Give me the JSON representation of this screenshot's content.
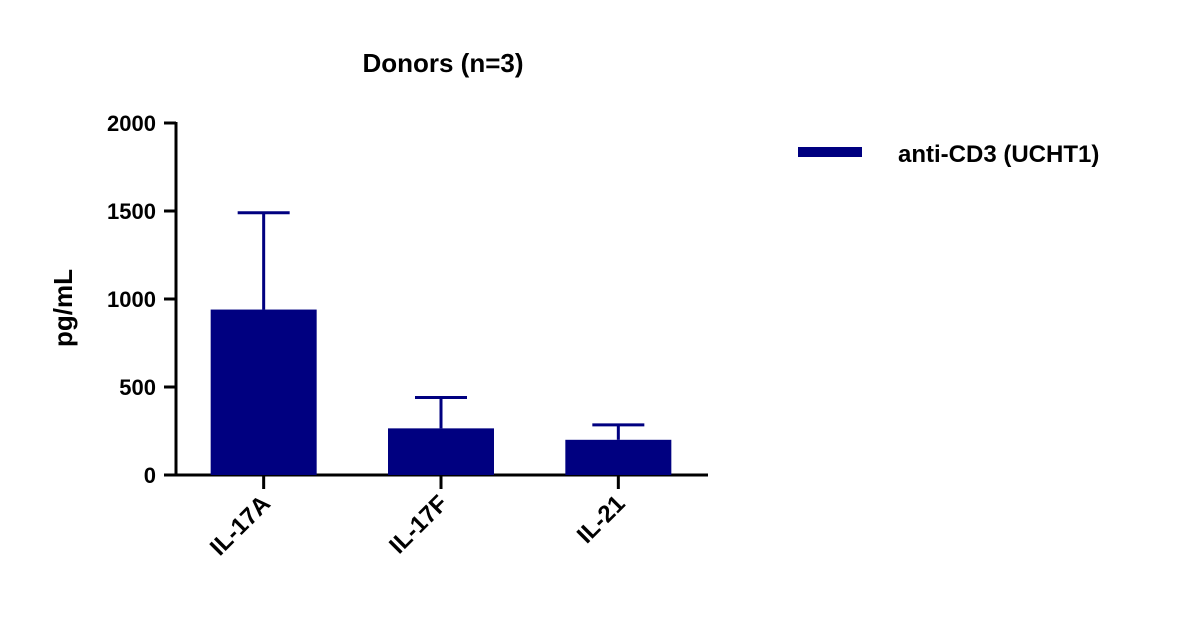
{
  "chart_data": {
    "type": "bar",
    "title": "Donors (n=3)",
    "xlabel": "",
    "ylabel": "pg/mL",
    "categories": [
      "IL-17A",
      "IL-17F",
      "IL-21"
    ],
    "series": [
      {
        "name": "anti-CD3 (UCHT1)",
        "values": [
          940,
          265,
          200
        ],
        "error_upper": [
          550,
          175,
          85
        ]
      }
    ],
    "ylim": [
      0,
      2000
    ],
    "yticks": [
      0,
      500,
      1000,
      1500,
      2000
    ],
    "ytick_labels": [
      "0",
      "500",
      "1000",
      "1500",
      "2000"
    ],
    "grid": false,
    "legend_position": "top-right",
    "colors": {
      "bar": "#000080",
      "axis": "#000000"
    }
  }
}
